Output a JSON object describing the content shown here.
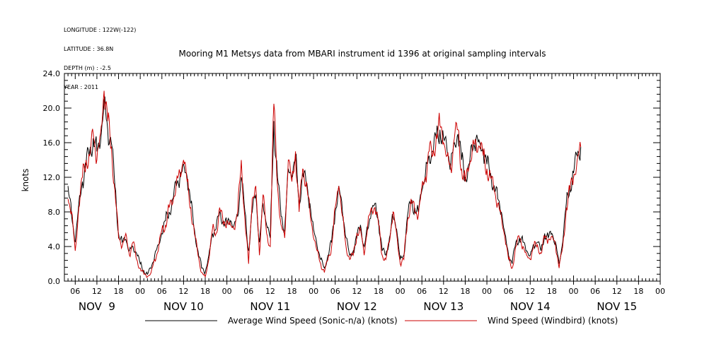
{
  "metadata": [
    "LONGITUDE : 122W(-122)",
    "LATITUDE : 36.8N",
    "DEPTH (m) : -2.5",
    "YEAR : 2011"
  ],
  "chart_data": {
    "type": "line",
    "title": "Mooring M1 Metsys data from MBARI instrument id 1396 at original sampling intervals",
    "ylabel": "knots",
    "xlabel": "",
    "ylim": [
      0,
      24
    ],
    "yticks": [
      "0.0",
      "4.0",
      "8.0",
      "12.0",
      "16.0",
      "20.0",
      "24.0"
    ],
    "xlim_hours": [
      -21,
      144
    ],
    "hour_ticks": [
      {
        "hour": -18,
        "label": "06"
      },
      {
        "hour": -12,
        "label": "12"
      },
      {
        "hour": -6,
        "label": "18"
      },
      {
        "hour": 0,
        "label": "00"
      },
      {
        "hour": 6,
        "label": "06"
      },
      {
        "hour": 12,
        "label": "12"
      },
      {
        "hour": 18,
        "label": "18"
      },
      {
        "hour": 24,
        "label": "00"
      },
      {
        "hour": 30,
        "label": "06"
      },
      {
        "hour": 36,
        "label": "12"
      },
      {
        "hour": 42,
        "label": "18"
      },
      {
        "hour": 48,
        "label": "00"
      },
      {
        "hour": 54,
        "label": "06"
      },
      {
        "hour": 60,
        "label": "12"
      },
      {
        "hour": 66,
        "label": "18"
      },
      {
        "hour": 72,
        "label": "00"
      },
      {
        "hour": 78,
        "label": "06"
      },
      {
        "hour": 84,
        "label": "12"
      },
      {
        "hour": 90,
        "label": "18"
      },
      {
        "hour": 96,
        "label": "00"
      },
      {
        "hour": 102,
        "label": "06"
      },
      {
        "hour": 108,
        "label": "12"
      },
      {
        "hour": 114,
        "label": "18"
      },
      {
        "hour": 120,
        "label": "00"
      },
      {
        "hour": 126,
        "label": "06"
      },
      {
        "hour": 132,
        "label": "12"
      },
      {
        "hour": 138,
        "label": "18"
      },
      {
        "hour": 144,
        "label": "00"
      }
    ],
    "day_labels": [
      {
        "hour": -12,
        "label": "NOV  9"
      },
      {
        "hour": 12,
        "label": "NOV 10"
      },
      {
        "hour": 36,
        "label": "NOV 11"
      },
      {
        "hour": 60,
        "label": "NOV 12"
      },
      {
        "hour": 84,
        "label": "NOV 13"
      },
      {
        "hour": 108,
        "label": "NOV 14"
      },
      {
        "hour": 132,
        "label": "NOV 15"
      }
    ],
    "x_hours": [
      -20,
      -19,
      -18,
      -17,
      -16,
      -15,
      -14,
      -13,
      -12,
      -11,
      -10,
      -9,
      -8,
      -7,
      -6,
      -5,
      -4,
      -3,
      -2,
      -1,
      0,
      1,
      2,
      3,
      4,
      5,
      6,
      7,
      8,
      9,
      10,
      11,
      12,
      13,
      14,
      15,
      16,
      17,
      18,
      19,
      20,
      21,
      22,
      23,
      24,
      25,
      26,
      27,
      28,
      29,
      30,
      31,
      32,
      33,
      34,
      35,
      36,
      37,
      38,
      39,
      40,
      41,
      42,
      43,
      44,
      45,
      46,
      47,
      48,
      49,
      50,
      51,
      52,
      53,
      54,
      55,
      56,
      57,
      58,
      59,
      60,
      61,
      62,
      63,
      64,
      65,
      66,
      67,
      68,
      69,
      70,
      71,
      72,
      73,
      74,
      75,
      76,
      77,
      78,
      79,
      80,
      81,
      82,
      83,
      84,
      85,
      86,
      87,
      88,
      89,
      90,
      91,
      92,
      93,
      94,
      95,
      96,
      97,
      98,
      99,
      100,
      101,
      102,
      103,
      104,
      105,
      106,
      107,
      108,
      109,
      110,
      111,
      112,
      113,
      114,
      115,
      116,
      117,
      118,
      119,
      120,
      121,
      122,
      123,
      124,
      125,
      126,
      127,
      128,
      129,
      130,
      131,
      132,
      133,
      134,
      135,
      136,
      137,
      138,
      139,
      140,
      141,
      142,
      143,
      144
    ],
    "series": [
      {
        "name": "Average Wind Speed (Sonic-n/a) (knots)",
        "color": "#000000",
        "values": [
          11.0,
          7.5,
          4.5,
          9.0,
          11.5,
          13.5,
          15.0,
          16.5,
          15.0,
          16.0,
          21.0,
          17.5,
          16.0,
          11.0,
          5.5,
          4.5,
          4.8,
          3.5,
          4.0,
          3.2,
          2.0,
          1.2,
          0.8,
          1.5,
          3.0,
          4.2,
          5.5,
          7.0,
          8.0,
          9.5,
          11.0,
          12.0,
          13.5,
          12.0,
          9.0,
          6.0,
          3.5,
          1.5,
          1.0,
          3.0,
          5.5,
          6.0,
          8.0,
          7.0,
          6.5,
          7.0,
          6.5,
          7.5,
          12.0,
          8.0,
          3.5,
          8.0,
          10.0,
          4.5,
          9.0,
          6.5,
          5.0,
          18.5,
          12.0,
          7.5,
          6.0,
          13.0,
          12.0,
          14.5,
          9.0,
          12.5,
          11.0,
          9.0,
          6.0,
          4.0,
          2.5,
          1.5,
          3.0,
          4.5,
          8.0,
          11.0,
          8.0,
          5.0,
          3.0,
          3.5,
          5.0,
          6.5,
          4.0,
          6.0,
          8.0,
          9.0,
          7.0,
          3.5,
          3.0,
          5.0,
          7.5,
          6.0,
          2.5,
          3.0,
          7.5,
          9.0,
          8.5,
          8.0,
          10.5,
          12.5,
          14.5,
          15.0,
          16.5,
          17.5,
          16.5,
          15.0,
          13.5,
          16.0,
          17.0,
          14.0,
          12.0,
          13.5,
          15.0,
          16.5,
          16.0,
          15.0,
          13.5,
          12.5,
          11.0,
          9.5,
          8.0,
          5.5,
          3.0,
          2.0,
          4.5,
          5.0,
          4.5,
          3.5,
          3.0,
          4.2,
          4.5,
          3.5,
          5.5,
          5.0,
          5.5,
          4.5,
          2.0,
          4.5,
          9.0,
          11.0,
          12.5,
          14.5,
          15.5
        ]
      },
      {
        "name": "Wind Speed (Windbird) (knots)",
        "color": "#cc0000",
        "values": [
          9.5,
          8.0,
          3.5,
          8.5,
          12.0,
          14.0,
          14.5,
          17.0,
          14.0,
          17.0,
          22.0,
          18.5,
          15.5,
          10.5,
          5.0,
          4.0,
          5.5,
          3.0,
          4.5,
          2.5,
          1.5,
          0.8,
          0.5,
          1.0,
          2.5,
          3.5,
          6.0,
          6.5,
          8.5,
          9.0,
          11.5,
          12.5,
          14.0,
          11.5,
          8.5,
          5.5,
          3.0,
          1.0,
          0.5,
          2.5,
          6.0,
          5.5,
          8.5,
          6.5,
          7.0,
          6.5,
          6.0,
          8.0,
          14.0,
          7.0,
          2.0,
          9.5,
          11.0,
          3.0,
          10.0,
          5.5,
          4.0,
          20.5,
          11.0,
          6.5,
          5.0,
          14.0,
          11.5,
          15.0,
          8.0,
          13.0,
          11.5,
          8.0,
          5.0,
          3.5,
          2.0,
          1.0,
          2.5,
          4.0,
          8.5,
          11.0,
          7.5,
          4.0,
          2.5,
          3.0,
          5.5,
          6.0,
          3.0,
          6.5,
          8.5,
          8.5,
          6.5,
          3.0,
          2.5,
          4.5,
          8.0,
          5.5,
          2.0,
          2.5,
          7.0,
          9.5,
          8.0,
          7.5,
          11.0,
          12.0,
          15.0,
          14.5,
          17.0,
          18.0,
          16.0,
          14.5,
          13.0,
          16.5,
          17.5,
          13.0,
          11.5,
          13.0,
          15.5,
          16.0,
          15.5,
          14.5,
          13.0,
          12.0,
          10.5,
          9.0,
          7.5,
          5.0,
          2.5,
          1.5,
          4.0,
          5.0,
          4.0,
          3.0,
          2.5,
          4.0,
          4.2,
          3.2,
          5.0,
          4.8,
          5.2,
          4.2,
          1.5,
          4.0,
          8.5,
          10.5,
          12.0,
          14.0,
          15.5
        ]
      }
    ],
    "legend_placement": "bottom",
    "grid": false
  }
}
